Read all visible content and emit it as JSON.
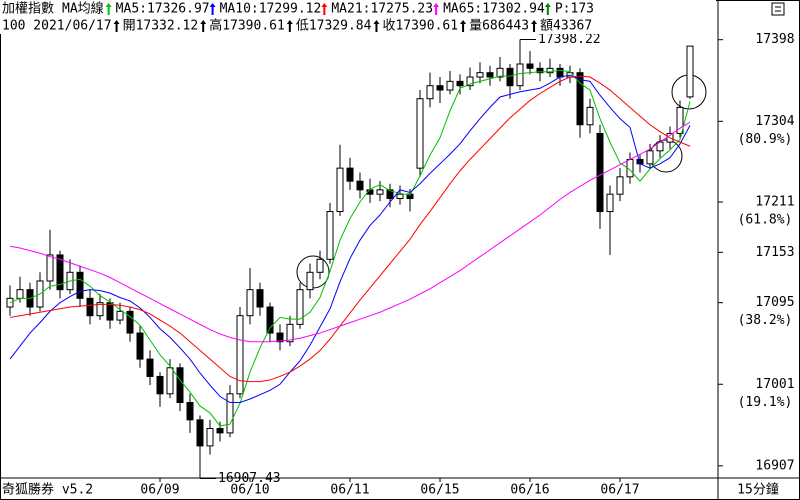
{
  "chart_data": {
    "type": "candlestick",
    "title": "加權指數",
    "indicator": "MA均線",
    "extra": "P:173",
    "bar_info": [
      "100 2021/06/17",
      "開17332.12",
      "高17390.61",
      "低17329.84",
      "收17390.61",
      "量686443",
      "額43367"
    ],
    "software": "奇狐勝券 v5.2",
    "period": "15分鐘",
    "categories": [
      null,
      null,
      null,
      null,
      null,
      null,
      null,
      null,
      null,
      null,
      null,
      null,
      null,
      null,
      null,
      "06/09",
      null,
      null,
      null,
      null,
      null,
      null,
      null,
      null,
      "06/10",
      null,
      null,
      null,
      null,
      null,
      null,
      null,
      null,
      null,
      "06/11",
      null,
      null,
      null,
      null,
      null,
      null,
      null,
      null,
      "06/15",
      null,
      null,
      null,
      null,
      null,
      null,
      null,
      null,
      "06/16",
      null,
      null,
      null,
      null,
      null,
      null,
      null,
      null,
      "06/17",
      null,
      null,
      null,
      null,
      null,
      null,
      null
    ],
    "candles": {
      "open": [
        17090,
        17100,
        17110,
        17090,
        17120,
        17150,
        17110,
        17130,
        17100,
        17080,
        17095,
        17075,
        17085,
        17060,
        17030,
        17010,
        16990,
        17020,
        16980,
        16960,
        16930,
        16950,
        16945,
        16990,
        17080,
        17110,
        17090,
        17060,
        17050,
        17070,
        17110,
        17130,
        17145,
        17200,
        17250,
        17235,
        17225,
        17220,
        17225,
        17215,
        17220,
        17250,
        17330,
        17345,
        17340,
        17350,
        17345,
        17355,
        17360,
        17355,
        17365,
        17345,
        17370,
        17365,
        17360,
        17365,
        17355,
        17360,
        17300,
        17290,
        17200,
        17220,
        17240,
        17260,
        17255,
        17270,
        17280,
        17290,
        17332.12
      ],
      "high": [
        17115,
        17125,
        17118,
        17130,
        17179,
        17155,
        17145,
        17138,
        17110,
        17105,
        17100,
        17095,
        17090,
        17068,
        17040,
        17015,
        17030,
        17025,
        16990,
        16965,
        16960,
        16958,
        17000,
        17090,
        17135,
        17118,
        17095,
        17070,
        17080,
        17118,
        17140,
        17155,
        17210,
        17277,
        17262,
        17245,
        17238,
        17235,
        17232,
        17230,
        17226,
        17340,
        17360,
        17355,
        17362,
        17358,
        17366,
        17372,
        17368,
        17378,
        17370,
        17398.22,
        17385,
        17372,
        17376,
        17370,
        17368,
        17365,
        17330,
        17300,
        17230,
        17250,
        17268,
        17266,
        17278,
        17288,
        17298,
        17328,
        17390.61
      ],
      "low": [
        17080,
        17095,
        17080,
        17085,
        17110,
        17100,
        17105,
        17090,
        17070,
        17075,
        17065,
        17070,
        17050,
        17020,
        17000,
        16975,
        16985,
        16970,
        16945,
        16907.43,
        16920,
        16935,
        16940,
        16985,
        17070,
        17080,
        17050,
        17040,
        17045,
        17065,
        17100,
        17122,
        17140,
        17195,
        17225,
        17215,
        17210,
        17212,
        17205,
        17208,
        17200,
        17240,
        17320,
        17325,
        17335,
        17335,
        17340,
        17348,
        17345,
        17350,
        17330,
        17340,
        17358,
        17350,
        17355,
        17345,
        17348,
        17285,
        17290,
        17180,
        17150,
        17212,
        17232,
        17245,
        17250,
        17262,
        17272,
        17285,
        17329.84
      ],
      "close": [
        17100,
        17110,
        17090,
        17120,
        17150,
        17110,
        17130,
        17100,
        17080,
        17095,
        17075,
        17085,
        17060,
        17030,
        17010,
        16990,
        17020,
        16980,
        16960,
        16930,
        16950,
        16945,
        16990,
        17080,
        17110,
        17090,
        17060,
        17050,
        17070,
        17110,
        17130,
        17145,
        17200,
        17250,
        17235,
        17225,
        17220,
        17225,
        17215,
        17220,
        17215,
        17330,
        17345,
        17340,
        17350,
        17345,
        17355,
        17360,
        17355,
        17365,
        17345,
        17370,
        17365,
        17360,
        17365,
        17355,
        17360,
        17300,
        17320,
        17200,
        17220,
        17240,
        17260,
        17255,
        17270,
        17280,
        17290,
        17320,
        17390.61
      ]
    },
    "series": [
      {
        "name": "MA5:17326.97",
        "color": "#00c000",
        "values": [
          17095,
          17100,
          17100,
          17105,
          17114,
          17116,
          17120,
          17122,
          17114,
          17103,
          17096,
          17087,
          17079,
          17069,
          17052,
          17035,
          17022,
          17006,
          16992,
          16976,
          16968,
          16953,
          16955,
          16979,
          17015,
          17043,
          17066,
          17078,
          17076,
          17076,
          17084,
          17101,
          17131,
          17167,
          17192,
          17211,
          17226,
          17231,
          17224,
          17221,
          17219,
          17241,
          17265,
          17285,
          17316,
          17342,
          17347,
          17350,
          17353,
          17356,
          17356,
          17359,
          17360,
          17361,
          17361,
          17363,
          17361,
          17348,
          17340,
          17307,
          17280,
          17256,
          17248,
          17235,
          17249,
          17261,
          17271,
          17283,
          17326.97
        ]
      },
      {
        "name": "MA10:17299.12",
        "color": "#0000ff",
        "values": [
          17030,
          17045,
          17060,
          17072,
          17085,
          17095,
          17102,
          17108,
          17110,
          17109,
          17106,
          17101,
          17097,
          17089,
          17078,
          17065,
          17055,
          17043,
          17030,
          17014,
          17000,
          16987,
          16980,
          16980,
          16984,
          16989,
          16994,
          17001,
          17015,
          17028,
          17046,
          17067,
          17088,
          17119,
          17146,
          17167,
          17184,
          17196,
          17211,
          17225,
          17222,
          17232,
          17244,
          17255,
          17266,
          17278,
          17293,
          17307,
          17320,
          17332,
          17335,
          17338,
          17340,
          17342,
          17348,
          17355,
          17357,
          17352,
          17350,
          17334,
          17320,
          17307,
          17297,
          17255,
          17250,
          17255,
          17262,
          17278,
          17299.12
        ]
      },
      {
        "name": "MA21:17275.23",
        "color": "#ff0000",
        "values": [
          17078,
          17080,
          17082,
          17084,
          17086,
          17088,
          17090,
          17091,
          17092,
          17093,
          17093,
          17092,
          17090,
          17087,
          17082,
          17075,
          17068,
          17060,
          17050,
          17040,
          17030,
          17020,
          17010,
          17005,
          17004,
          17004,
          17006,
          17010,
          17015,
          17022,
          17030,
          17040,
          17053,
          17068,
          17083,
          17098,
          17112,
          17126,
          17140,
          17154,
          17168,
          17185,
          17200,
          17216,
          17232,
          17247,
          17260,
          17272,
          17284,
          17296,
          17308,
          17318,
          17328,
          17336,
          17343,
          17350,
          17355,
          17356,
          17355,
          17348,
          17340,
          17330,
          17320,
          17310,
          17300,
          17292,
          17285,
          17280,
          17275.23
        ]
      },
      {
        "name": "MA65:17302.94",
        "color": "#ff00ff",
        "values": [
          17160,
          17158,
          17155,
          17152,
          17148,
          17145,
          17141,
          17137,
          17133,
          17129,
          17124,
          17118,
          17112,
          17106,
          17100,
          17094,
          17088,
          17082,
          17076,
          17070,
          17064,
          17059,
          17055,
          17052,
          17050,
          17050,
          17050,
          17051,
          17052,
          17054,
          17057,
          17060,
          17064,
          17068,
          17072,
          17076,
          17080,
          17084,
          17089,
          17094,
          17099,
          17105,
          17111,
          17118,
          17125,
          17132,
          17140,
          17148,
          17156,
          17164,
          17172,
          17180,
          17188,
          17196,
          17205,
          17214,
          17222,
          17229,
          17236,
          17242,
          17248,
          17254,
          17260,
          17266,
          17272,
          17280,
          17288,
          17296,
          17302.94
        ]
      }
    ],
    "annotations": [
      {
        "label": "17398.22",
        "value": 17398.22
      },
      {
        "label": "16907.43",
        "value": 16907.43
      }
    ],
    "ylim": [
      16893,
      17423
    ],
    "yticks": [
      17398,
      17304,
      17211,
      17153,
      17095,
      17001,
      16907
    ],
    "ytick_sublabels": [
      null,
      "(80.9%)",
      "(61.8%)",
      null,
      "(38.2%)",
      "(19.1%)",
      null
    ]
  }
}
